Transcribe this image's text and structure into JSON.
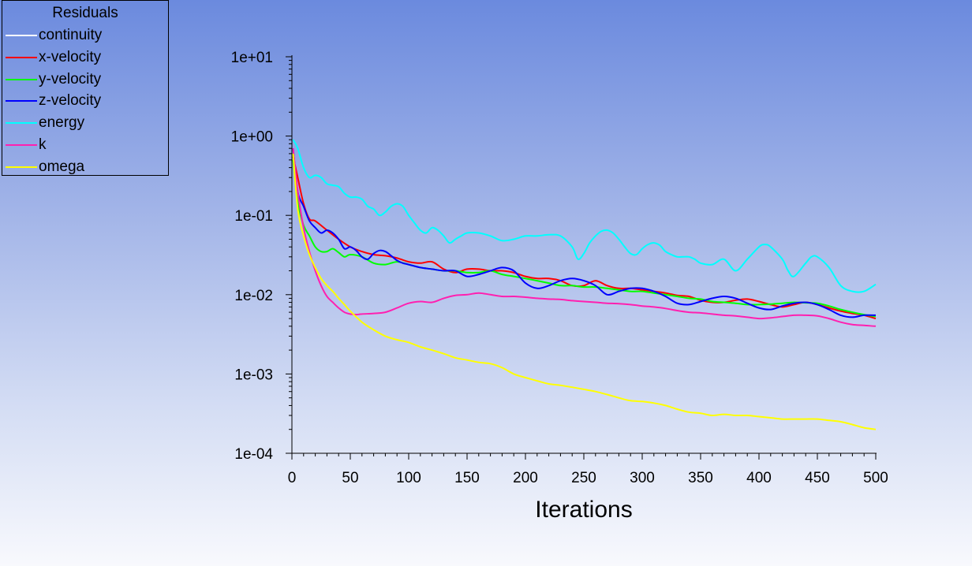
{
  "legend": {
    "title": "Residuals"
  },
  "chart_data": {
    "type": "line",
    "title": "",
    "xlabel": "Iterations",
    "ylabel": "",
    "yscale": "log",
    "xlim": [
      0,
      500
    ],
    "ylim": [
      0.0001,
      10
    ],
    "grid": false,
    "legend_position": "top-left",
    "x_ticks": [
      "0",
      "50",
      "100",
      "150",
      "200",
      "250",
      "300",
      "350",
      "400",
      "450",
      "500"
    ],
    "y_ticks": [
      "1e-04",
      "1e-03",
      "1e-02",
      "1e-01",
      "1e+00",
      "1e+01"
    ],
    "series": [
      {
        "name": "continuity",
        "color": "#ffffff",
        "x": [],
        "y": []
      },
      {
        "name": "x-velocity",
        "color": "#ff0000",
        "x": [
          1,
          5,
          10,
          15,
          20,
          30,
          40,
          50,
          60,
          70,
          80,
          90,
          100,
          110,
          120,
          130,
          140,
          150,
          160,
          170,
          180,
          190,
          200,
          210,
          220,
          230,
          240,
          250,
          260,
          270,
          280,
          290,
          300,
          310,
          320,
          330,
          340,
          350,
          360,
          370,
          380,
          390,
          400,
          410,
          420,
          430,
          440,
          450,
          460,
          470,
          480,
          490,
          500
        ],
        "y": [
          0.55,
          0.3,
          0.14,
          0.09,
          0.085,
          0.065,
          0.05,
          0.04,
          0.035,
          0.032,
          0.031,
          0.029,
          0.026,
          0.025,
          0.026,
          0.021,
          0.019,
          0.021,
          0.021,
          0.02,
          0.02,
          0.019,
          0.017,
          0.016,
          0.016,
          0.015,
          0.013,
          0.013,
          0.015,
          0.013,
          0.012,
          0.012,
          0.0115,
          0.011,
          0.0105,
          0.0098,
          0.0095,
          0.0085,
          0.008,
          0.008,
          0.0085,
          0.0088,
          0.0082,
          0.0075,
          0.007,
          0.0075,
          0.008,
          0.0075,
          0.0068,
          0.0062,
          0.0058,
          0.0055,
          0.005
        ]
      },
      {
        "name": "y-velocity",
        "color": "#00ff00",
        "x": [
          1,
          5,
          10,
          15,
          20,
          25,
          30,
          35,
          40,
          45,
          50,
          60,
          70,
          80,
          90,
          100,
          110,
          120,
          130,
          140,
          150,
          160,
          170,
          180,
          190,
          200,
          210,
          220,
          230,
          240,
          250,
          260,
          270,
          280,
          290,
          300,
          310,
          320,
          330,
          340,
          350,
          360,
          370,
          380,
          390,
          400,
          410,
          420,
          430,
          440,
          450,
          460,
          470,
          480,
          490,
          500
        ],
        "y": [
          0.5,
          0.15,
          0.075,
          0.055,
          0.04,
          0.035,
          0.035,
          0.038,
          0.034,
          0.03,
          0.032,
          0.03,
          0.025,
          0.024,
          0.026,
          0.024,
          0.022,
          0.021,
          0.02,
          0.02,
          0.019,
          0.019,
          0.02,
          0.018,
          0.017,
          0.016,
          0.015,
          0.014,
          0.013,
          0.013,
          0.0125,
          0.0125,
          0.012,
          0.0115,
          0.011,
          0.011,
          0.0105,
          0.01,
          0.0095,
          0.009,
          0.0088,
          0.0082,
          0.008,
          0.0078,
          0.0075,
          0.0075,
          0.0076,
          0.0078,
          0.008,
          0.0079,
          0.0078,
          0.0072,
          0.0065,
          0.006,
          0.0056,
          0.0053
        ]
      },
      {
        "name": "z-velocity",
        "color": "#0000ff",
        "x": [
          1,
          5,
          10,
          15,
          20,
          25,
          30,
          35,
          40,
          45,
          50,
          55,
          60,
          65,
          70,
          75,
          80,
          85,
          90,
          95,
          100,
          110,
          120,
          130,
          140,
          150,
          160,
          170,
          180,
          190,
          200,
          210,
          220,
          230,
          240,
          250,
          260,
          270,
          280,
          290,
          300,
          310,
          320,
          330,
          340,
          350,
          360,
          370,
          380,
          390,
          400,
          410,
          420,
          430,
          440,
          450,
          460,
          470,
          480,
          490,
          500
        ],
        "y": [
          0.7,
          0.2,
          0.13,
          0.085,
          0.07,
          0.06,
          0.065,
          0.06,
          0.05,
          0.038,
          0.04,
          0.036,
          0.03,
          0.028,
          0.033,
          0.036,
          0.035,
          0.031,
          0.027,
          0.025,
          0.024,
          0.022,
          0.021,
          0.02,
          0.02,
          0.017,
          0.018,
          0.02,
          0.022,
          0.02,
          0.014,
          0.012,
          0.013,
          0.015,
          0.016,
          0.015,
          0.013,
          0.01,
          0.011,
          0.012,
          0.012,
          0.011,
          0.0095,
          0.0078,
          0.0075,
          0.0082,
          0.009,
          0.0095,
          0.009,
          0.0078,
          0.0068,
          0.0065,
          0.0072,
          0.0078,
          0.008,
          0.0075,
          0.0065,
          0.0055,
          0.0052,
          0.0055,
          0.0055
        ]
      },
      {
        "name": "energy",
        "color": "#00ffff",
        "x": [
          1,
          5,
          10,
          15,
          20,
          25,
          30,
          35,
          40,
          45,
          50,
          55,
          60,
          65,
          70,
          75,
          80,
          85,
          90,
          95,
          100,
          105,
          110,
          115,
          120,
          125,
          130,
          135,
          140,
          145,
          150,
          160,
          170,
          180,
          190,
          200,
          210,
          220,
          230,
          240,
          245,
          250,
          255,
          260,
          265,
          270,
          275,
          280,
          285,
          290,
          295,
          300,
          305,
          310,
          315,
          320,
          325,
          330,
          335,
          340,
          345,
          350,
          360,
          370,
          380,
          390,
          400,
          405,
          410,
          420,
          425,
          430,
          440,
          445,
          450,
          460,
          470,
          480,
          490,
          500
        ],
        "y": [
          0.9,
          0.7,
          0.4,
          0.3,
          0.32,
          0.3,
          0.25,
          0.24,
          0.23,
          0.19,
          0.17,
          0.17,
          0.16,
          0.13,
          0.12,
          0.1,
          0.11,
          0.13,
          0.14,
          0.13,
          0.1,
          0.08,
          0.065,
          0.06,
          0.07,
          0.065,
          0.055,
          0.045,
          0.05,
          0.055,
          0.06,
          0.06,
          0.055,
          0.048,
          0.05,
          0.055,
          0.055,
          0.057,
          0.055,
          0.04,
          0.028,
          0.033,
          0.045,
          0.055,
          0.063,
          0.065,
          0.06,
          0.05,
          0.04,
          0.033,
          0.032,
          0.038,
          0.043,
          0.045,
          0.042,
          0.035,
          0.032,
          0.03,
          0.03,
          0.03,
          0.028,
          0.025,
          0.024,
          0.028,
          0.02,
          0.028,
          0.04,
          0.043,
          0.04,
          0.028,
          0.02,
          0.017,
          0.025,
          0.03,
          0.03,
          0.022,
          0.013,
          0.011,
          0.011,
          0.0135
        ]
      },
      {
        "name": "k",
        "color": "#ff20b0",
        "x": [
          1,
          5,
          10,
          15,
          20,
          25,
          30,
          35,
          40,
          45,
          50,
          55,
          60,
          70,
          80,
          90,
          100,
          110,
          120,
          130,
          140,
          150,
          160,
          170,
          180,
          190,
          200,
          210,
          220,
          230,
          240,
          250,
          260,
          270,
          280,
          290,
          300,
          310,
          320,
          330,
          340,
          350,
          360,
          370,
          380,
          390,
          400,
          410,
          420,
          430,
          440,
          450,
          460,
          470,
          480,
          490,
          500
        ],
        "y": [
          0.7,
          0.2,
          0.07,
          0.035,
          0.02,
          0.013,
          0.0095,
          0.008,
          0.0068,
          0.006,
          0.0057,
          0.0056,
          0.0057,
          0.0058,
          0.006,
          0.0068,
          0.0078,
          0.0082,
          0.008,
          0.009,
          0.0098,
          0.01,
          0.0105,
          0.01,
          0.0095,
          0.0095,
          0.0093,
          0.009,
          0.0088,
          0.0087,
          0.0084,
          0.0082,
          0.008,
          0.0078,
          0.0077,
          0.0075,
          0.0072,
          0.007,
          0.0067,
          0.0063,
          0.006,
          0.0059,
          0.0057,
          0.0055,
          0.0054,
          0.0052,
          0.005,
          0.0051,
          0.0053,
          0.0055,
          0.0055,
          0.0054,
          0.005,
          0.0045,
          0.0042,
          0.0041,
          0.004
        ]
      },
      {
        "name": "omega",
        "color": "#ffff00",
        "x": [
          1,
          5,
          10,
          15,
          20,
          25,
          30,
          35,
          40,
          45,
          50,
          60,
          70,
          80,
          90,
          100,
          110,
          120,
          130,
          140,
          150,
          160,
          170,
          180,
          190,
          200,
          210,
          220,
          230,
          240,
          250,
          260,
          270,
          280,
          290,
          300,
          310,
          320,
          330,
          340,
          350,
          360,
          370,
          380,
          390,
          400,
          410,
          420,
          430,
          440,
          450,
          460,
          470,
          480,
          490,
          500
        ],
        "y": [
          0.6,
          0.12,
          0.055,
          0.032,
          0.022,
          0.016,
          0.013,
          0.011,
          0.009,
          0.0075,
          0.0062,
          0.0045,
          0.0036,
          0.003,
          0.0027,
          0.0025,
          0.0022,
          0.002,
          0.0018,
          0.0016,
          0.0015,
          0.0014,
          0.00135,
          0.0012,
          0.001,
          0.0009,
          0.00082,
          0.00075,
          0.00072,
          0.00068,
          0.00064,
          0.0006,
          0.00055,
          0.0005,
          0.00046,
          0.00045,
          0.00043,
          0.0004,
          0.00036,
          0.00033,
          0.00032,
          0.0003,
          0.00031,
          0.0003,
          0.0003,
          0.00029,
          0.00028,
          0.00027,
          0.00027,
          0.00027,
          0.00027,
          0.00026,
          0.00025,
          0.00023,
          0.00021,
          0.0002
        ]
      }
    ]
  }
}
